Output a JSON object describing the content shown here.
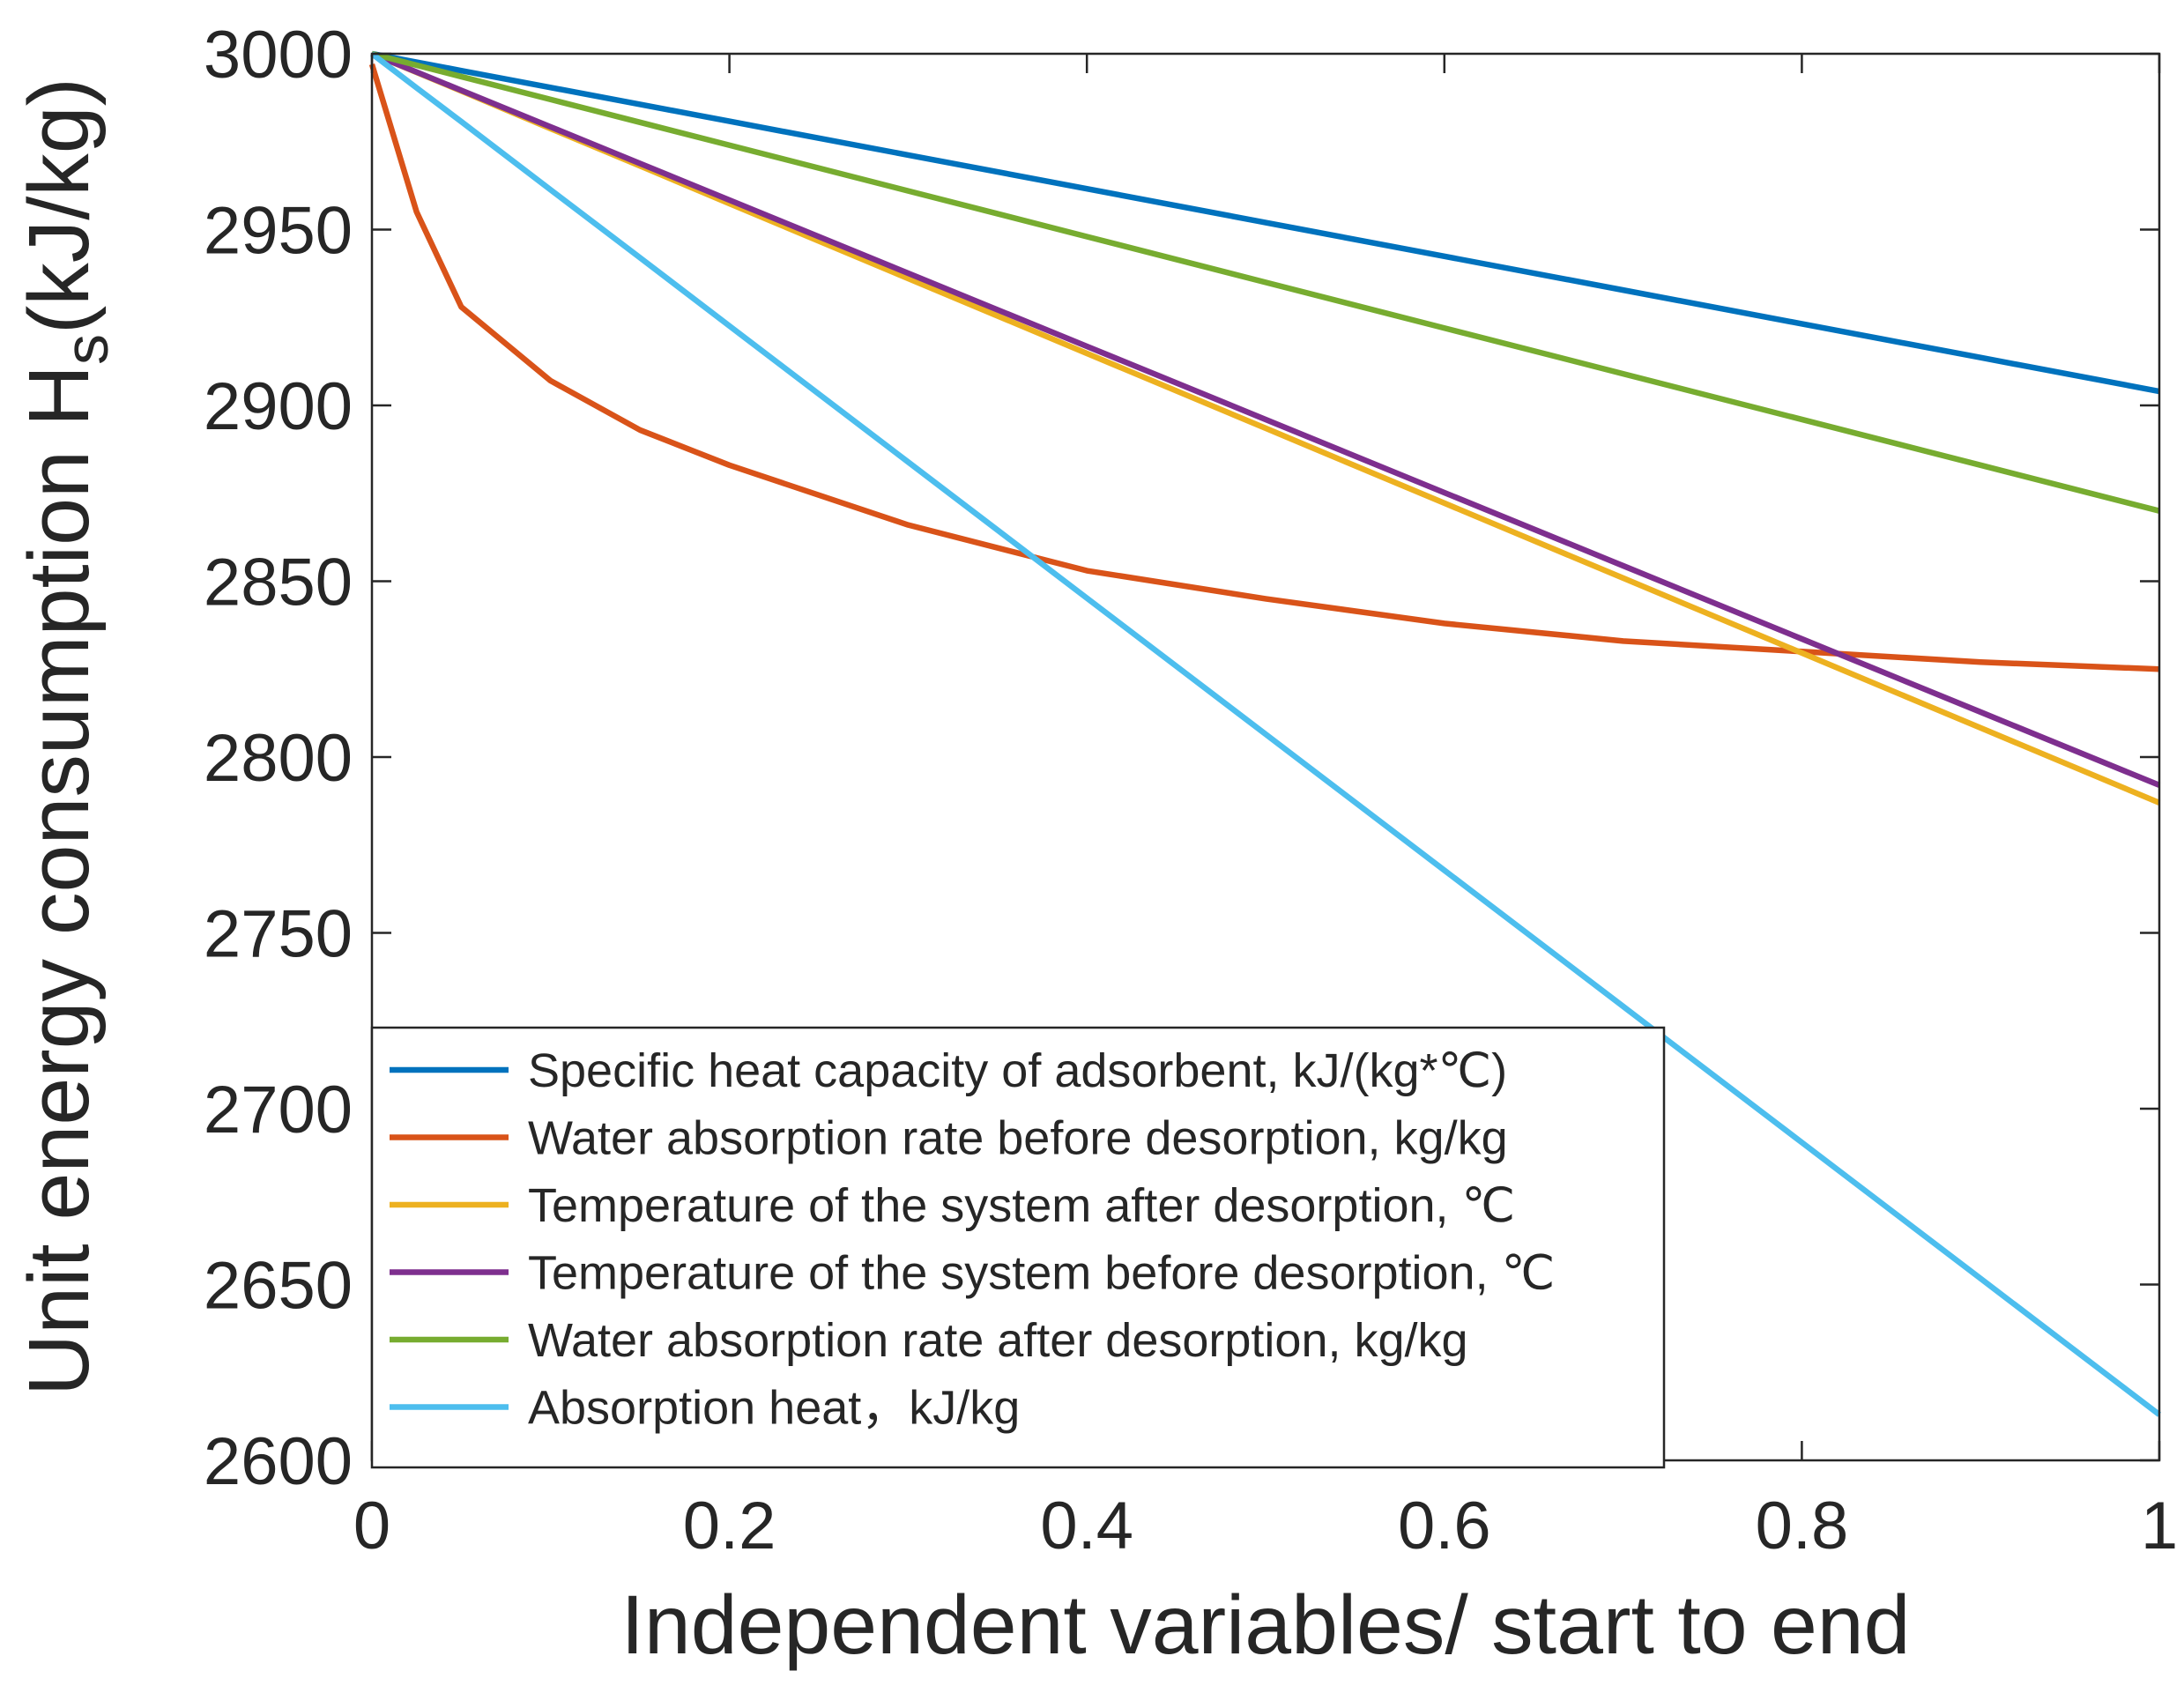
{
  "chart_data": {
    "type": "line",
    "xlabel": "Independent variables/ start to end",
    "ylabel": [
      "Unit energy consumption H",
      "s",
      "(kJ/kg)"
    ],
    "x": [
      0,
      0.025,
      0.05,
      0.1,
      0.15,
      0.2,
      0.3,
      0.4,
      0.5,
      0.6,
      0.7,
      0.8,
      0.9,
      1
    ],
    "series": [
      {
        "name": "Specific heat capacity of adsorbent, kJ/(kg*℃)",
        "color": "#0072bd",
        "values": [
          3000,
          2997.6,
          2995.2,
          2990.4,
          2985.6,
          2980.8,
          2971.2,
          2961.6,
          2952,
          2942.4,
          2932.8,
          2923.2,
          2913.6,
          2904
        ]
      },
      {
        "name": "Water absorption rate before desorption, kg/kg",
        "color": "#d95319",
        "values": [
          2997,
          2955,
          2928,
          2907,
          2893,
          2883,
          2866,
          2853,
          2845,
          2838,
          2833,
          2830,
          2827,
          2825
        ]
      },
      {
        "name": "Temperature of the system after desorption, ℃",
        "color": "#edb120",
        "values": [
          3000,
          2994.7,
          2989.4,
          2978.7,
          2968.1,
          2957.4,
          2936.1,
          2914.8,
          2893.5,
          2872.2,
          2850.9,
          2829.6,
          2808.3,
          2787
        ]
      },
      {
        "name": "Temperature of the system before desorption, ℃",
        "color": "#7e2f8e",
        "values": [
          3000,
          2994.8,
          2989.6,
          2979.2,
          2968.8,
          2958.4,
          2937.6,
          2916.8,
          2896,
          2875.2,
          2854.4,
          2833.6,
          2812.8,
          2792
        ]
      },
      {
        "name": "Water absorption rate after desorption, kg/kg",
        "color": "#77ac30",
        "values": [
          3000,
          2996.75,
          2993.5,
          2987,
          2980.5,
          2974,
          2961,
          2948,
          2935,
          2922,
          2909,
          2896,
          2883,
          2870
        ]
      },
      {
        "name": "Absorption heat，kJ/kg",
        "color": "#4dbeee",
        "values": [
          3000,
          2990.3,
          2980.7,
          2961.3,
          2942,
          2922.6,
          2883.9,
          2845.2,
          2806.5,
          2767.8,
          2729.1,
          2690.4,
          2651.7,
          2613
        ]
      }
    ],
    "xlim": [
      0,
      1
    ],
    "xticks": [
      0,
      0.2,
      0.4,
      0.6,
      0.8,
      1
    ],
    "ylim": [
      2600,
      3000
    ],
    "yticks": [
      2600,
      2650,
      2700,
      2750,
      2800,
      2850,
      2900,
      2950,
      3000
    ],
    "grid": false,
    "legend": "lower left"
  }
}
